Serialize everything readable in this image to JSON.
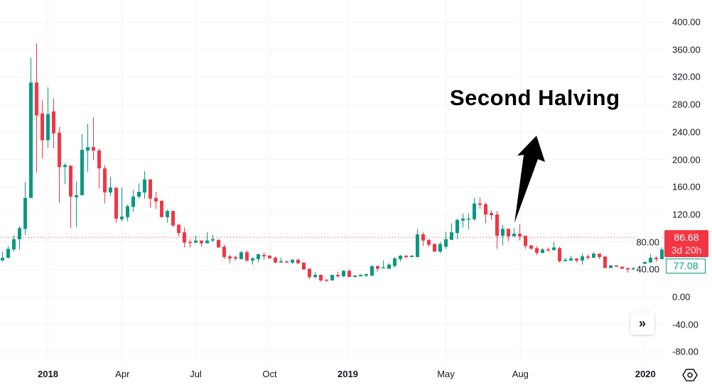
{
  "chart_data": {
    "type": "candlestick",
    "title": "",
    "annotation": "Second Halving",
    "interval": "weekly",
    "ylim": [
      -80,
      400
    ],
    "yticks": [
      "400.00",
      "360.00",
      "320.00",
      "280.00",
      "240.00",
      "200.00",
      "160.00",
      "120.00",
      "80.00",
      "40.00",
      "0.00",
      "-40.00",
      "-80.00"
    ],
    "ytick_values": [
      400,
      360,
      320,
      280,
      240,
      200,
      160,
      120,
      80,
      40,
      0,
      -40,
      -80
    ],
    "xticks": [
      {
        "label": "2018",
        "index": 8,
        "major": true
      },
      {
        "label": "Apr",
        "index": 21.1,
        "major": false
      },
      {
        "label": "Jul",
        "index": 34,
        "major": false
      },
      {
        "label": "Oct",
        "index": 47,
        "major": false
      },
      {
        "label": "2019",
        "index": 60.75,
        "major": true
      },
      {
        "label": "May",
        "index": 78,
        "major": false
      },
      {
        "label": "Aug",
        "index": 91.1,
        "major": false
      },
      {
        "label": "2020",
        "index": 113.1,
        "major": true
      }
    ],
    "ohlc_format": [
      "open",
      "high",
      "low",
      "close"
    ],
    "ohlc": [
      [
        53,
        66,
        52,
        57
      ],
      [
        57,
        74,
        56,
        70
      ],
      [
        69,
        90,
        66,
        84
      ],
      [
        84,
        103,
        69,
        100
      ],
      [
        99,
        167,
        90,
        144
      ],
      [
        144,
        348,
        144,
        312
      ],
      [
        312,
        369,
        181,
        264
      ],
      [
        267,
        286,
        201,
        228
      ],
      [
        228,
        305,
        217,
        266
      ],
      [
        270,
        289,
        216,
        238
      ],
      [
        239,
        247,
        137,
        189
      ],
      [
        189,
        195,
        164,
        192
      ],
      [
        191,
        191,
        100,
        146
      ],
      [
        145,
        168,
        102,
        148
      ],
      [
        148,
        237,
        148,
        214
      ],
      [
        213,
        252,
        182,
        218
      ],
      [
        218,
        261,
        199,
        213
      ],
      [
        213,
        216,
        158,
        187
      ],
      [
        187,
        192,
        136,
        152
      ],
      [
        152,
        175,
        147,
        159
      ],
      [
        159,
        159,
        108,
        114
      ],
      [
        113,
        159,
        110,
        117
      ],
      [
        116,
        134,
        110,
        132
      ],
      [
        131,
        156,
        124,
        146
      ],
      [
        146,
        165,
        143,
        153
      ],
      [
        152,
        183,
        143,
        171
      ],
      [
        171,
        171,
        130,
        143
      ],
      [
        144,
        153,
        128,
        139
      ],
      [
        140,
        140,
        116,
        116
      ],
      [
        116,
        127,
        108,
        125
      ],
      [
        125,
        126,
        102,
        104
      ],
      [
        105,
        107,
        88,
        93
      ],
      [
        94,
        101,
        72,
        79
      ],
      [
        80,
        84,
        72,
        79
      ],
      [
        79,
        89,
        78,
        82
      ],
      [
        82,
        82,
        73,
        78
      ],
      [
        78,
        94,
        78,
        82
      ],
      [
        82,
        90,
        80,
        84
      ],
      [
        83,
        84,
        71,
        72
      ],
      [
        73,
        76,
        55,
        58
      ],
      [
        59,
        61,
        49,
        56
      ],
      [
        58,
        60,
        53,
        56
      ],
      [
        55,
        67,
        55,
        65
      ],
      [
        65,
        68,
        51,
        53
      ],
      [
        53,
        58,
        47,
        56
      ],
      [
        55,
        63,
        50,
        62
      ],
      [
        61,
        65,
        54,
        59
      ],
      [
        60,
        61,
        56,
        56
      ],
      [
        57,
        59,
        49,
        50
      ],
      [
        50,
        57,
        50,
        52
      ],
      [
        52,
        52,
        50,
        50
      ],
      [
        50,
        55,
        48,
        54
      ],
      [
        54,
        56,
        48,
        49
      ],
      [
        50,
        50,
        39,
        40
      ],
      [
        41,
        41,
        26,
        29
      ],
      [
        29,
        36,
        27,
        32
      ],
      [
        32,
        33,
        22,
        24
      ],
      [
        25,
        26,
        22,
        24
      ],
      [
        24,
        32,
        24,
        32
      ],
      [
        32,
        36,
        28,
        30
      ],
      [
        30,
        39,
        29,
        38
      ],
      [
        38,
        40,
        29,
        29
      ],
      [
        29,
        32,
        29,
        31
      ],
      [
        30,
        33,
        30,
        32
      ],
      [
        31,
        34,
        29,
        33
      ],
      [
        31,
        46,
        30,
        45
      ],
      [
        45,
        45,
        37,
        41
      ],
      [
        42,
        53,
        42,
        43
      ],
      [
        41,
        49,
        41,
        47
      ],
      [
        45,
        58,
        43,
        56
      ],
      [
        55,
        61,
        52,
        60
      ],
      [
        60,
        61,
        56,
        58
      ],
      [
        58,
        61,
        58,
        60
      ],
      [
        58,
        99,
        58,
        91
      ],
      [
        91,
        94,
        74,
        82
      ],
      [
        83,
        84,
        73,
        76
      ],
      [
        77,
        78,
        66,
        66
      ],
      [
        66,
        80,
        64,
        77
      ],
      [
        73,
        95,
        70,
        84
      ],
      [
        83,
        107,
        83,
        94
      ],
      [
        93,
        114,
        84,
        112
      ],
      [
        111,
        121,
        101,
        114
      ],
      [
        113,
        121,
        98,
        114
      ],
      [
        113,
        144,
        111,
        136
      ],
      [
        136,
        145,
        128,
        134
      ],
      [
        135,
        137,
        107,
        120
      ],
      [
        122,
        126,
        112,
        119
      ],
      [
        120,
        125,
        70,
        89
      ],
      [
        89,
        105,
        75,
        99
      ],
      [
        99,
        100,
        81,
        88
      ],
      [
        88,
        100,
        88,
        92
      ],
      [
        92,
        106,
        82,
        88
      ],
      [
        89,
        89,
        70,
        74
      ],
      [
        75,
        75,
        69,
        70
      ],
      [
        71,
        74,
        61,
        64
      ],
      [
        64,
        71,
        64,
        69
      ],
      [
        69,
        72,
        66,
        68
      ],
      [
        68,
        80,
        68,
        72
      ],
      [
        71,
        73,
        50,
        52
      ],
      [
        52,
        57,
        52,
        54
      ],
      [
        53,
        60,
        52,
        56
      ],
      [
        56,
        56,
        50,
        53
      ],
      [
        53,
        63,
        47,
        59
      ],
      [
        59,
        62,
        54,
        57
      ],
      [
        57,
        65,
        57,
        63
      ],
      [
        63,
        63,
        55,
        58
      ],
      [
        59,
        59,
        42,
        42
      ],
      [
        42,
        46,
        42,
        46
      ],
      [
        46,
        46,
        44,
        44
      ],
      [
        44,
        44,
        41,
        41
      ],
      [
        42,
        42,
        35,
        40
      ],
      [
        40,
        43,
        39,
        42
      ],
      [
        41,
        43,
        39,
        42
      ],
      [
        41,
        51,
        41,
        51
      ],
      [
        50,
        62,
        50,
        57
      ],
      [
        57,
        59,
        51,
        55
      ],
      [
        55,
        72,
        55,
        69
      ],
      [
        69,
        88,
        66,
        86.68
      ]
    ],
    "last_price": 86.68,
    "last_price_label": "86.68",
    "countdown": "3d 20h",
    "secondary_price_label": "77.08",
    "grid": true,
    "colors": {
      "up": "#089981",
      "down": "#f23645",
      "grid": "#f0f3fa",
      "arrow": "#000000"
    }
  },
  "controls": {
    "scroll_icon": "»",
    "settings_icon": "settings-icon"
  }
}
